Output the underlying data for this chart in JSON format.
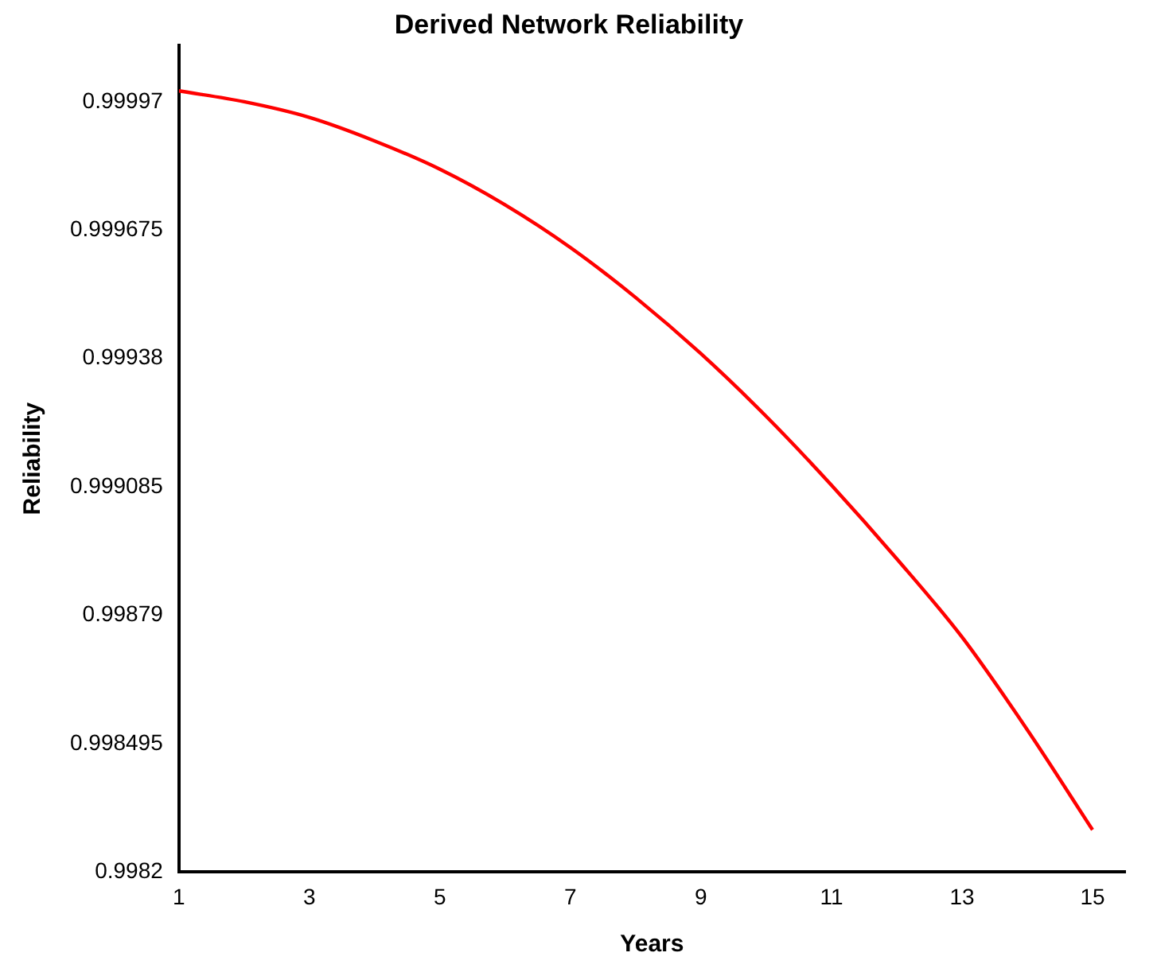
{
  "chart_data": {
    "type": "line",
    "title": "Derived Network Reliability",
    "xlabel": "Years",
    "ylabel": "Reliability",
    "x": [
      1,
      2,
      3,
      4,
      5,
      6,
      7,
      8,
      9,
      10,
      11,
      12,
      13,
      14,
      15
    ],
    "series": [
      {
        "color": "#ff0000",
        "values": [
          0.999995,
          0.99997,
          0.999934,
          0.99988,
          0.999815,
          0.999733,
          0.999635,
          0.99952,
          0.999391,
          0.999247,
          0.999089,
          0.99892,
          0.99874,
          0.998527,
          0.998297
        ]
      }
    ],
    "xlim": [
      1,
      15.5
    ],
    "xticks": [
      1,
      3,
      5,
      7,
      9,
      11,
      13,
      15
    ],
    "ylim": [
      0.9982,
      1.0001
    ],
    "yticks": [
      0.9982,
      0.998495,
      0.99879,
      0.999085,
      0.99938,
      0.999675,
      0.99997
    ],
    "grid": false,
    "legend": false,
    "marker": "none",
    "line_style": "solid"
  }
}
